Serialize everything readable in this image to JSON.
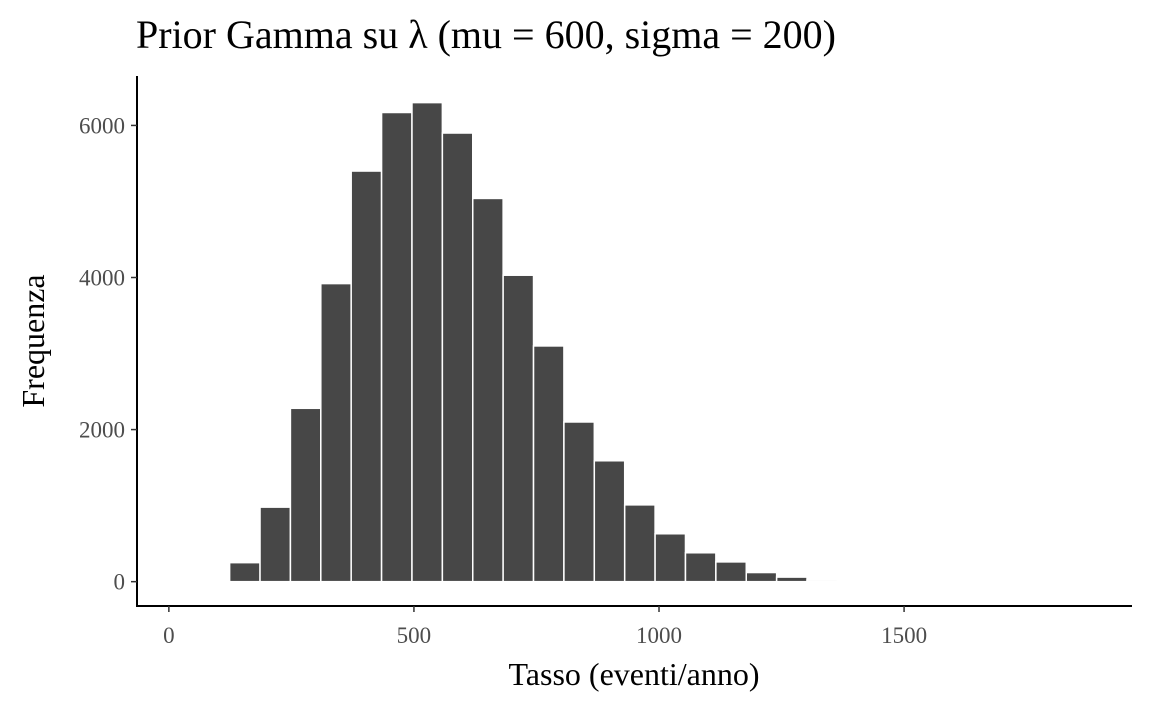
{
  "chart_data": {
    "type": "bar",
    "title": "Prior Gamma su λ (mu = 600, sigma = 200)",
    "xlabel": "Tasso (eventi/anno)",
    "ylabel": "Frequenza",
    "xlim": [
      -65,
      1965
    ],
    "ylim": [
      -320,
      6650
    ],
    "x_ticks": [
      0,
      500,
      1000,
      1500
    ],
    "y_ticks": [
      0,
      2000,
      4000,
      6000
    ],
    "bin_width": 62,
    "bar_color": "#474747",
    "bar_outline": "#ffffff",
    "grid": false,
    "legend": "none",
    "bins": [
      {
        "x": 155,
        "count": 250
      },
      {
        "x": 217,
        "count": 980
      },
      {
        "x": 279,
        "count": 2280
      },
      {
        "x": 341,
        "count": 3920
      },
      {
        "x": 403,
        "count": 5400
      },
      {
        "x": 465,
        "count": 6170
      },
      {
        "x": 527,
        "count": 6300
      },
      {
        "x": 589,
        "count": 5900
      },
      {
        "x": 651,
        "count": 5040
      },
      {
        "x": 713,
        "count": 4030
      },
      {
        "x": 775,
        "count": 3100
      },
      {
        "x": 837,
        "count": 2100
      },
      {
        "x": 899,
        "count": 1590
      },
      {
        "x": 961,
        "count": 1010
      },
      {
        "x": 1023,
        "count": 630
      },
      {
        "x": 1085,
        "count": 380
      },
      {
        "x": 1147,
        "count": 260
      },
      {
        "x": 1209,
        "count": 120
      },
      {
        "x": 1271,
        "count": 60
      },
      {
        "x": 1333,
        "count": 20
      }
    ]
  }
}
